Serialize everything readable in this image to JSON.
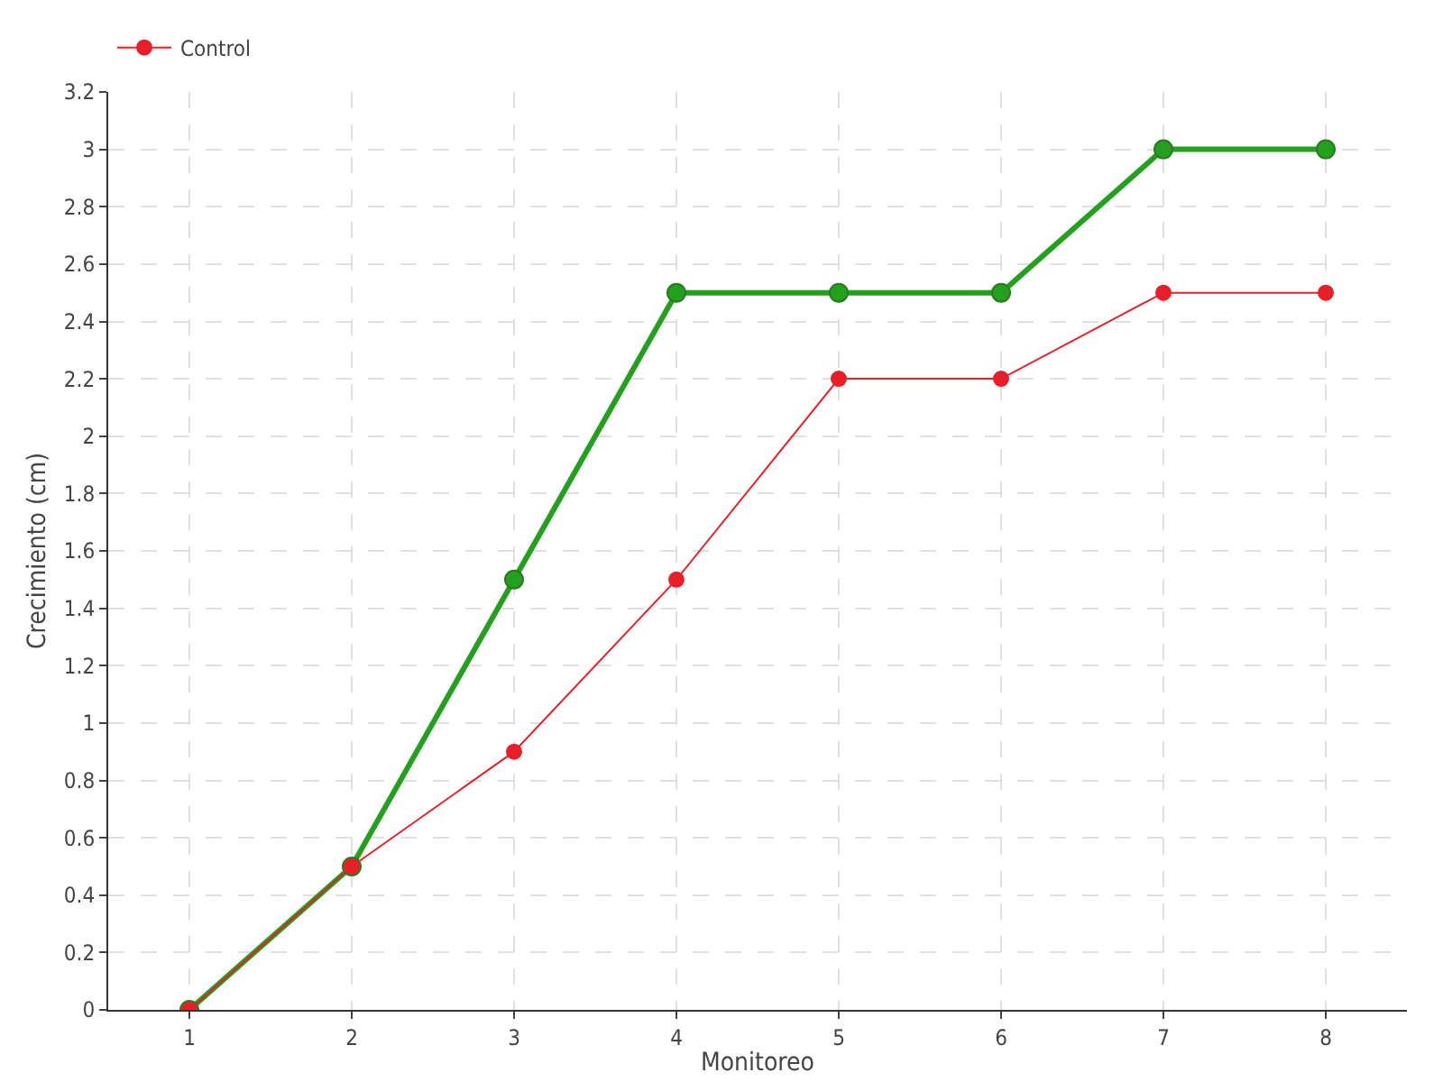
{
  "chart_data": {
    "type": "line",
    "xlabel": "Monitoreo",
    "ylabel": "Crecimiento (cm)",
    "x": [
      1,
      2,
      3,
      4,
      5,
      6,
      7,
      8
    ],
    "series": [
      {
        "color": "#22a01e",
        "values": [
          0,
          0.5,
          1.5,
          2.5,
          2.5,
          2.5,
          3,
          3
        ]
      },
      {
        "name": "Control",
        "color": "#e81e28",
        "values": [
          0,
          0.5,
          0.9,
          1.5,
          2.2,
          2.2,
          2.5,
          2.5
        ]
      }
    ],
    "xlim": [
      0.5,
      8.5
    ],
    "xticks": [
      1,
      2,
      3,
      4,
      5,
      6,
      7,
      8
    ],
    "ylim": [
      0,
      3.2
    ],
    "yticks": [
      0,
      0.2,
      0.4,
      0.6,
      0.8,
      1,
      1.2,
      1.4,
      1.6,
      1.8,
      2,
      2.2,
      2.4,
      2.6,
      2.8,
      3,
      3.2
    ],
    "grid": true,
    "legend": "top left",
    "marker": "circle",
    "line_style": "solid"
  }
}
